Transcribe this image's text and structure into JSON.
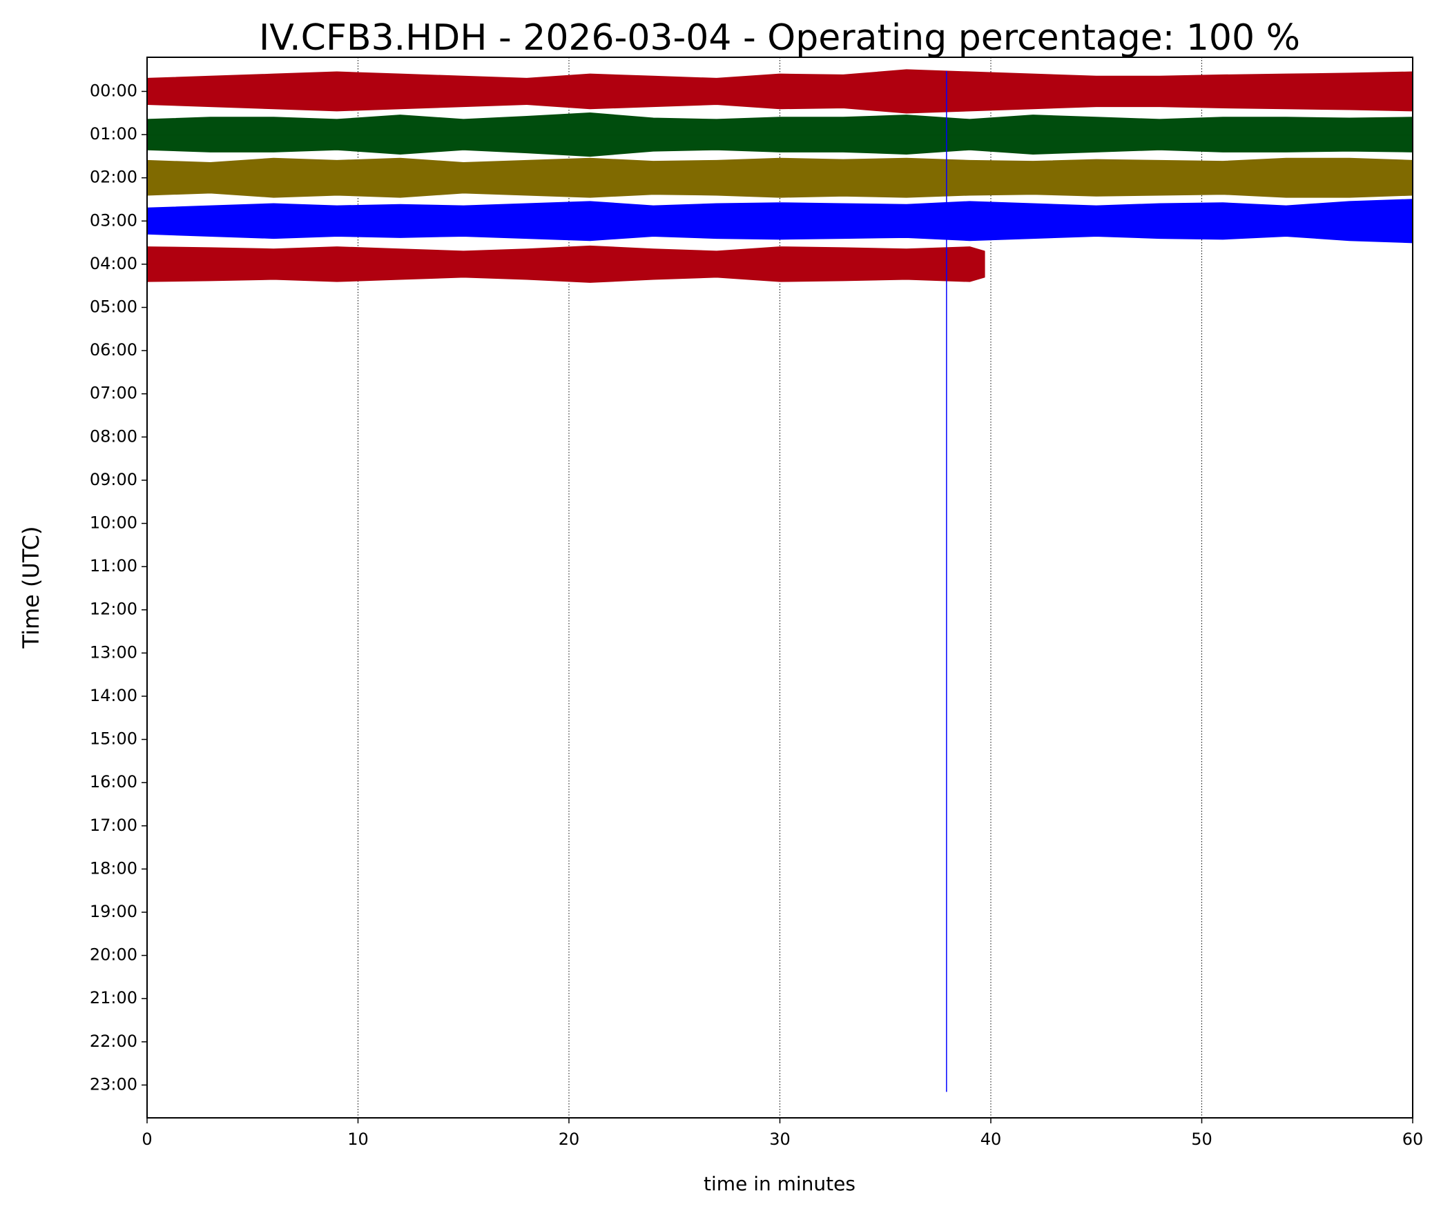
{
  "chart_data": {
    "type": "helicorder",
    "title": "IV.CFB3.HDH - 2026-03-04 - Operating percentage: 100 %",
    "x_label": "time in minutes",
    "y_label": "Time (UTC)",
    "xlim": [
      0,
      60
    ],
    "xticks": [
      0,
      10,
      20,
      30,
      40,
      50,
      60
    ],
    "grid": true,
    "ylim": [
      -0.79,
      23.76
    ],
    "yticks": [
      {
        "value": 0,
        "label": "00:00"
      },
      {
        "value": 1,
        "label": "01:00"
      },
      {
        "value": 2,
        "label": "02:00"
      },
      {
        "value": 3,
        "label": "03:00"
      },
      {
        "value": 4,
        "label": "04:00"
      },
      {
        "value": 5,
        "label": "05:00"
      },
      {
        "value": 6,
        "label": "06:00"
      },
      {
        "value": 7,
        "label": "07:00"
      },
      {
        "value": 8,
        "label": "08:00"
      },
      {
        "value": 9,
        "label": "09:00"
      },
      {
        "value": 10,
        "label": "10:00"
      },
      {
        "value": 11,
        "label": "11:00"
      },
      {
        "value": 12,
        "label": "12:00"
      },
      {
        "value": 13,
        "label": "13:00"
      },
      {
        "value": 14,
        "label": "14:00"
      },
      {
        "value": 15,
        "label": "15:00"
      },
      {
        "value": 16,
        "label": "16:00"
      },
      {
        "value": 17,
        "label": "17:00"
      },
      {
        "value": 18,
        "label": "18:00"
      },
      {
        "value": 19,
        "label": "19:00"
      },
      {
        "value": 20,
        "label": "20:00"
      },
      {
        "value": 21,
        "label": "21:00"
      },
      {
        "value": 22,
        "label": "22:00"
      },
      {
        "value": 23,
        "label": "23:00"
      }
    ],
    "traces": [
      {
        "y": 0,
        "color": "#b0000f",
        "x": [
          0,
          3,
          6,
          9,
          12,
          15,
          18,
          21,
          24,
          27,
          30,
          33,
          36,
          39,
          42,
          45,
          48,
          51,
          54,
          57,
          60
        ],
        "values": [
          0.3,
          0.35,
          0.4,
          0.45,
          0.4,
          0.35,
          0.3,
          0.4,
          0.35,
          0.3,
          0.4,
          0.38,
          0.5,
          0.45,
          0.4,
          0.35,
          0.35,
          0.38,
          0.4,
          0.42,
          0.45
        ]
      },
      {
        "y": 1,
        "color": "#004d0d",
        "x": [
          0,
          3,
          6,
          9,
          12,
          15,
          18,
          21,
          24,
          27,
          30,
          33,
          36,
          39,
          42,
          45,
          48,
          51,
          54,
          57,
          60
        ],
        "values": [
          0.35,
          0.4,
          0.4,
          0.35,
          0.45,
          0.35,
          0.42,
          0.5,
          0.38,
          0.35,
          0.4,
          0.4,
          0.45,
          0.35,
          0.45,
          0.4,
          0.35,
          0.4,
          0.4,
          0.38,
          0.4
        ]
      },
      {
        "y": 2,
        "color": "#806a00",
        "x": [
          0,
          3,
          6,
          9,
          12,
          15,
          18,
          21,
          24,
          27,
          30,
          33,
          36,
          39,
          42,
          45,
          48,
          51,
          54,
          57,
          60
        ],
        "values": [
          0.4,
          0.35,
          0.45,
          0.4,
          0.45,
          0.35,
          0.4,
          0.45,
          0.38,
          0.4,
          0.45,
          0.42,
          0.45,
          0.4,
          0.38,
          0.42,
          0.4,
          0.38,
          0.45,
          0.45,
          0.4
        ]
      },
      {
        "y": 3,
        "color": "#0000ff",
        "x": [
          0,
          3,
          6,
          9,
          12,
          15,
          18,
          21,
          24,
          27,
          30,
          33,
          36,
          39,
          42,
          45,
          48,
          51,
          54,
          57,
          60
        ],
        "values": [
          0.3,
          0.35,
          0.4,
          0.35,
          0.38,
          0.35,
          0.4,
          0.45,
          0.35,
          0.4,
          0.42,
          0.4,
          0.38,
          0.45,
          0.4,
          0.35,
          0.4,
          0.42,
          0.35,
          0.45,
          0.5
        ]
      },
      {
        "y": 4,
        "color": "#b0000f",
        "x": [
          0,
          3,
          6,
          9,
          12,
          15,
          18,
          21,
          24,
          27,
          30,
          33,
          36,
          39,
          39.7
        ],
        "values": [
          0.4,
          0.38,
          0.35,
          0.4,
          0.35,
          0.3,
          0.35,
          0.42,
          0.35,
          0.3,
          0.4,
          0.38,
          0.35,
          0.4,
          0.3
        ]
      }
    ],
    "spike": {
      "x": 37.9,
      "y": [
        -0.47,
        23.16
      ],
      "color": "#0000ff"
    }
  }
}
